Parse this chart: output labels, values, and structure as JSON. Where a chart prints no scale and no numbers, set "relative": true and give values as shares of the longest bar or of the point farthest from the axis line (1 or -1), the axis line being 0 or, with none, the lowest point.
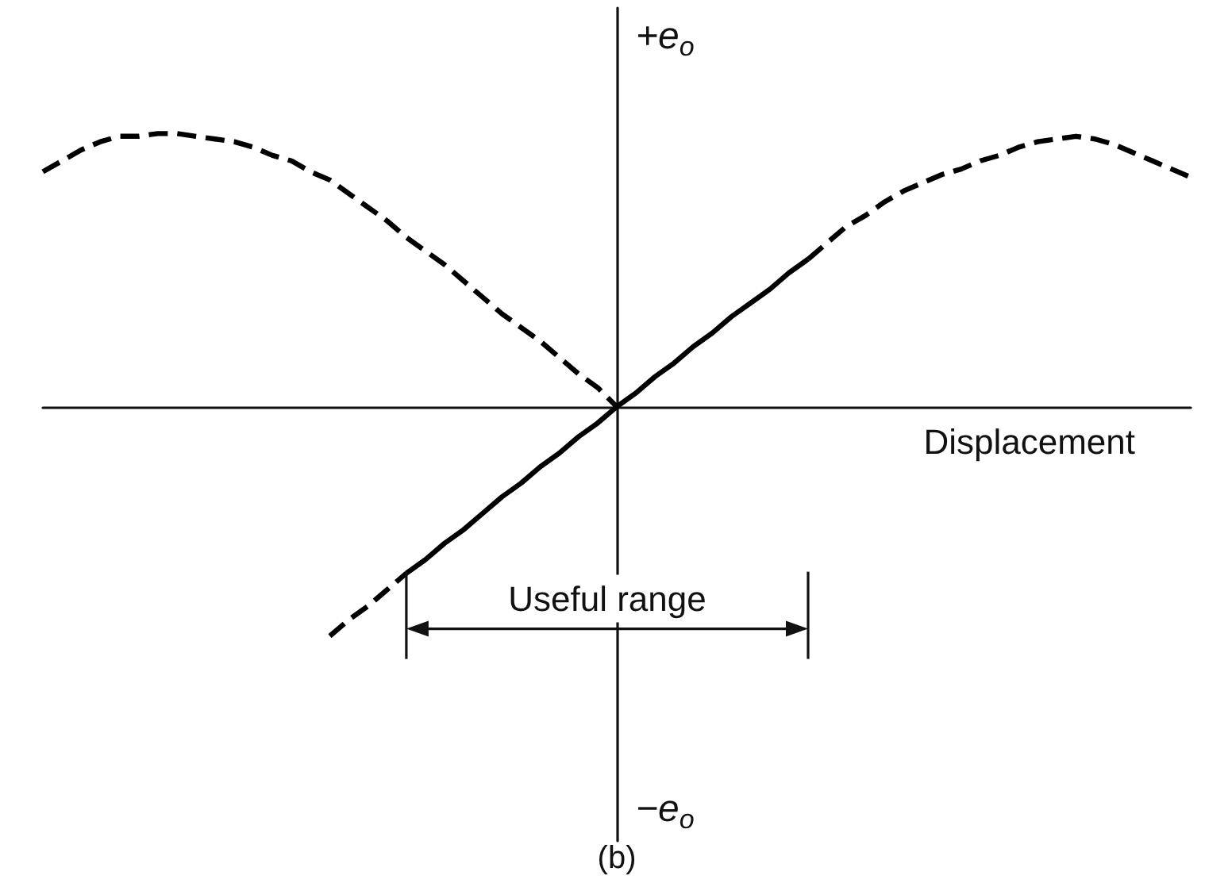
{
  "chart_data": {
    "type": "line",
    "relative": true,
    "xlabel": "Displacement",
    "ylabel": "+e$_{o}$",
    "annotations": [
      "−e$_{o}$",
      "Useful range",
      "(b)"
    ],
    "categories": [
      null,
      null,
      null,
      null,
      null,
      null,
      null,
      null,
      null,
      null,
      null,
      null,
      null,
      null,
      null,
      null,
      null,
      null,
      null,
      null,
      null,
      null,
      null,
      null,
      null,
      null,
      null,
      null,
      null,
      null,
      null,
      null,
      null,
      null,
      null,
      null,
      null,
      null,
      null,
      null,
      null,
      null,
      null,
      null,
      null,
      null,
      null,
      null,
      null,
      null,
      null,
      null,
      null,
      null,
      null,
      null,
      null,
      null,
      null,
      null,
      null
    ],
    "series": [
      {
        "color": "#000000",
        "line_style": "dashed",
        "values": [
          0.86,
          0.9,
          0.94,
          0.97,
          0.99,
          0.99,
          1,
          1,
          0.99,
          0.98,
          0.97,
          0.95,
          0.92,
          0.9,
          0.86,
          0.83,
          0.78,
          0.73,
          0.68,
          0.62,
          0.57,
          0.52,
          0.46,
          0.4,
          0.34,
          0.29,
          0.24,
          0.18,
          0.12,
          0.07,
          0,
          null,
          null,
          null,
          null,
          null,
          null,
          null,
          null,
          null,
          null,
          null,
          null,
          null,
          null,
          null,
          null,
          null,
          null,
          null,
          null,
          null,
          null,
          null,
          null,
          null,
          null,
          null,
          null,
          null,
          null
        ]
      },
      {
        "color": "#000000",
        "line_style": "dashed",
        "values": [
          null,
          null,
          null,
          null,
          null,
          null,
          null,
          null,
          null,
          null,
          null,
          null,
          null,
          null,
          null,
          -0.84,
          -0.78,
          -0.73,
          -0.67,
          -0.61,
          null,
          null,
          null,
          null,
          null,
          null,
          null,
          null,
          null,
          null,
          null,
          null,
          null,
          null,
          null,
          null,
          null,
          null,
          null,
          null,
          null,
          null,
          null,
          null,
          null,
          null,
          null,
          null,
          null,
          null,
          null,
          null,
          null,
          null,
          null,
          null,
          null,
          null,
          null,
          null,
          null
        ]
      },
      {
        "color": "#000000",
        "line_style": "solid",
        "values": [
          null,
          null,
          null,
          null,
          null,
          null,
          null,
          null,
          null,
          null,
          null,
          null,
          null,
          null,
          null,
          null,
          null,
          null,
          null,
          -0.61,
          -0.56,
          -0.5,
          -0.45,
          -0.39,
          -0.33,
          -0.28,
          -0.22,
          -0.17,
          -0.11,
          -0.06,
          0,
          0.05,
          0.11,
          0.16,
          0.22,
          0.27,
          0.33,
          0.38,
          0.43,
          0.49,
          0.54,
          null,
          null,
          null,
          null,
          null,
          null,
          null,
          null,
          null,
          null,
          null,
          null,
          null,
          null,
          null,
          null,
          null,
          null,
          null,
          null
        ]
      },
      {
        "color": "#000000",
        "line_style": "dashed",
        "values": [
          null,
          null,
          null,
          null,
          null,
          null,
          null,
          null,
          null,
          null,
          null,
          null,
          null,
          null,
          null,
          null,
          null,
          null,
          null,
          null,
          null,
          null,
          null,
          null,
          null,
          null,
          null,
          null,
          null,
          null,
          null,
          null,
          null,
          null,
          null,
          null,
          null,
          null,
          null,
          null,
          0.54,
          0.6,
          0.66,
          0.7,
          0.75,
          0.79,
          0.82,
          0.85,
          0.87,
          0.9,
          0.92,
          0.95,
          0.97,
          0.98,
          0.99,
          0.98,
          0.96,
          0.93,
          0.9,
          0.87,
          0.84
        ]
      }
    ],
    "marker": "none"
  }
}
